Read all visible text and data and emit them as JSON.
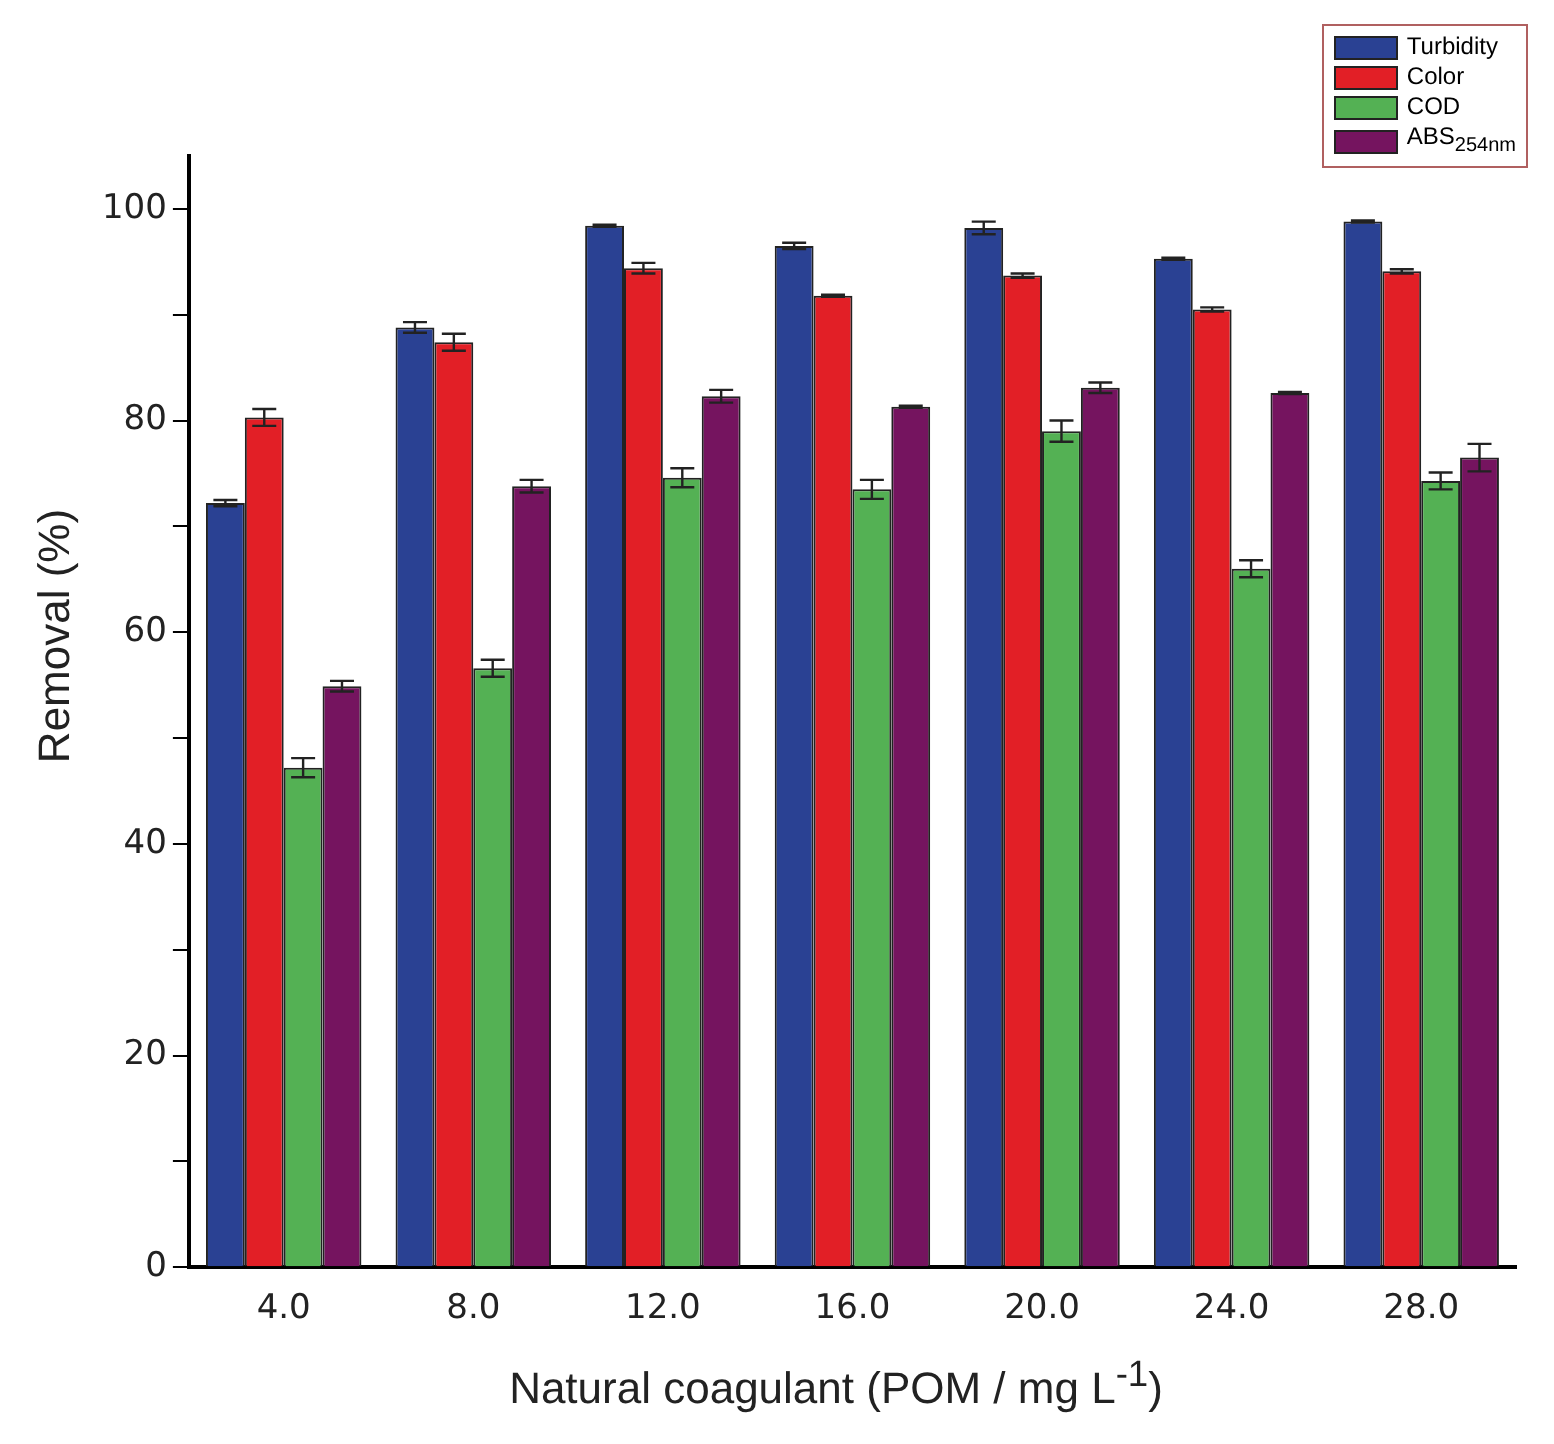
{
  "chart_data": {
    "type": "bar",
    "xlabel": "Natural coagulant (POM / mg L$^{-1}$)",
    "ylabel": "Removal (%)",
    "categories": [
      "4.0",
      "8.0",
      "12.0",
      "16.0",
      "20.0",
      "24.0",
      "28.0"
    ],
    "series": [
      {
        "name": "Turbidity",
        "color": "#2a4193",
        "values": [
          72.2,
          88.8,
          98.4,
          96.5,
          98.2,
          95.3,
          98.8
        ],
        "errors": [
          0.3,
          0.5,
          0.1,
          0.3,
          0.6,
          0.1,
          0.1
        ]
      },
      {
        "name": "Color",
        "color": "#e21f26",
        "values": [
          80.3,
          87.4,
          94.4,
          91.8,
          93.7,
          90.5,
          94.1
        ],
        "errors": [
          0.8,
          0.8,
          0.5,
          0.1,
          0.2,
          0.2,
          0.2
        ]
      },
      {
        "name": "COD",
        "color": "#54b154",
        "values": [
          47.2,
          56.6,
          74.6,
          73.5,
          79.0,
          66.0,
          74.3
        ],
        "errors": [
          0.9,
          0.8,
          0.9,
          0.9,
          1.0,
          0.8,
          0.8
        ]
      },
      {
        "name": "ABS$_{254nm}$",
        "color": "#75145f",
        "values": [
          54.9,
          73.8,
          82.3,
          81.3,
          83.1,
          82.6,
          76.5
        ],
        "errors": [
          0.5,
          0.6,
          0.6,
          0.1,
          0.5,
          0.1,
          1.3
        ]
      }
    ],
    "ylim": [
      0,
      105
    ],
    "yticks": [
      0,
      {
        "value": 10,
        "label": null
      },
      20,
      {
        "value": 30,
        "label": null
      },
      40,
      {
        "value": 50,
        "label": null
      },
      60,
      {
        "value": 70,
        "label": null
      },
      80,
      {
        "value": 90,
        "label": null
      },
      100
    ],
    "grid": false,
    "legend": "top right"
  }
}
